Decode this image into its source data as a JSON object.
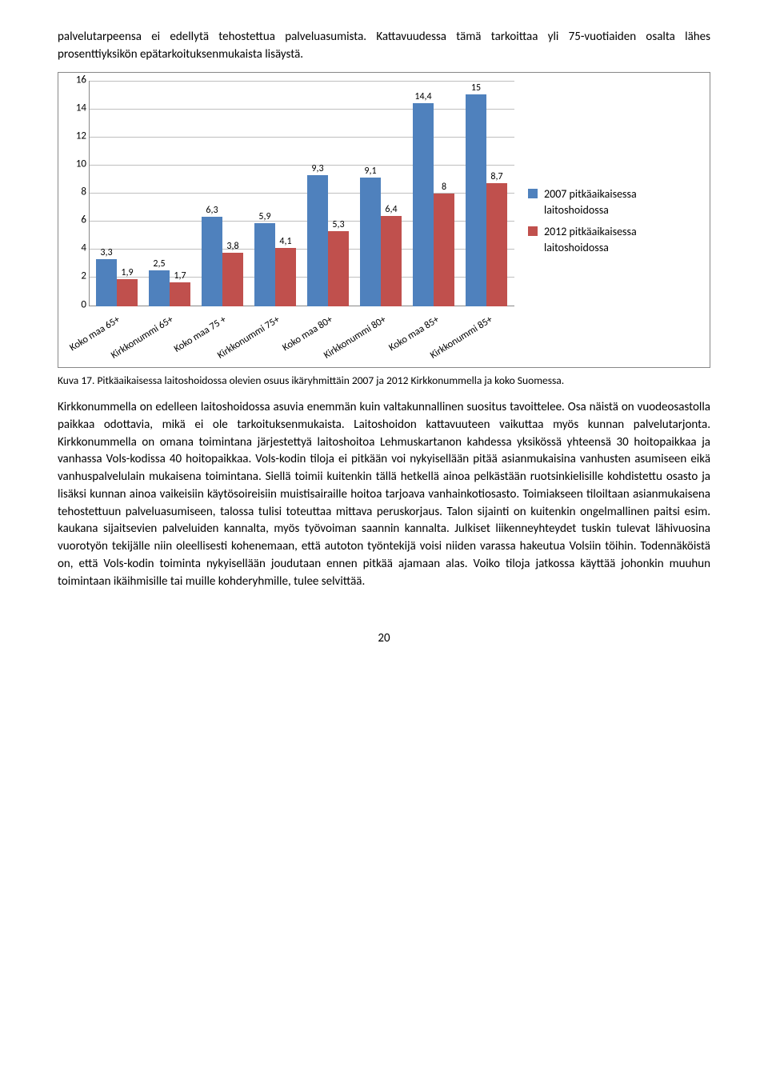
{
  "intro_para": "palvelutarpeensa ei edellytä tehostettua palveluasumista.  Kattavuudessa tämä tarkoittaa yli 75-vuotiaiden osalta lähes prosenttiyksikön epätarkoituksenmukaista lisäystä.",
  "chart": {
    "type": "bar",
    "ymax": 16,
    "ytick_step": 2,
    "series": [
      {
        "label": "2007 pitkäaikaisessa laitoshoidossa",
        "color": "#4f81bd"
      },
      {
        "label": "2012 pitkäaikaisessa laitoshoidossa",
        "color": "#c0504d"
      }
    ],
    "categories": [
      "Koko maa 65+",
      "Kirkkonummi 65+",
      "Koko maa 75 +",
      "Kirkkonummi 75+",
      "Koko maa 80+",
      "Kirkkonummi 80+",
      "Koko maa 85+",
      "Kirkkonummi 85+"
    ],
    "values_2007": [
      3.3,
      2.5,
      6.3,
      5.9,
      9.3,
      9.1,
      14.4,
      15
    ],
    "values_2012": [
      1.9,
      1.7,
      3.8,
      4.1,
      5.3,
      6.4,
      8,
      8.7
    ],
    "gridline_color": "#bfbfbf",
    "background_color": "#ffffff",
    "label_fontsize": 13
  },
  "caption": "Kuva 17. Pitkäaikaisessa laitoshoidossa olevien osuus ikäryhmittäin 2007 ja 2012 Kirkkonummella ja koko Suomessa.",
  "body_para": "Kirkkonummella on edelleen laitoshoidossa asuvia enemmän kuin valtakunnallinen suositus tavoittelee. Osa näistä on vuodeosastolla paikkaa odottavia, mikä ei ole tarkoituksenmukaista. Laitoshoidon kattavuuteen vaikuttaa myös kunnan palvelutarjonta. Kirkkonummella on omana toimintana järjestettyä laitoshoitoa Lehmuskartanon kahdessa yksikössä yhteensä 30 hoitopaikkaa ja vanhassa Vols-kodissa 40 hoitopaikkaa. Vols-kodin tiloja ei pitkään voi nykyisellään pitää asianmukaisina vanhusten asumiseen eikä vanhuspalvelulain mukaisena toimintana. Siellä toimii kuitenkin tällä hetkellä ainoa pelkästään ruotsinkielisille kohdistettu osasto ja lisäksi kunnan ainoa vaikeisiin käytösoireisiin muistisairaille hoitoa tarjoava vanhainkotiosasto.  Toimiakseen tiloiltaan asianmukaisena tehostettuun palveluasumiseen, talossa tulisi toteuttaa mittava peruskorjaus. Talon sijainti on kuitenkin ongelmallinen paitsi esim. kaukana sijaitsevien palveluiden kannalta, myös työvoiman saannin kannalta.  Julkiset liikenneyhteydet tuskin tulevat lähivuosina vuorotyön tekijälle niin oleellisesti kohenemaan, että autoton työntekijä voisi niiden varassa hakeutua Volsiin töihin. Todennäköistä on, että Vols-kodin toiminta nykyisellään joudutaan ennen pitkää ajamaan alas. Voiko tiloja jatkossa käyttää johonkin muuhun toimintaan ikäihmisille tai muille kohderyhmille, tulee selvittää.",
  "page_number": "20"
}
